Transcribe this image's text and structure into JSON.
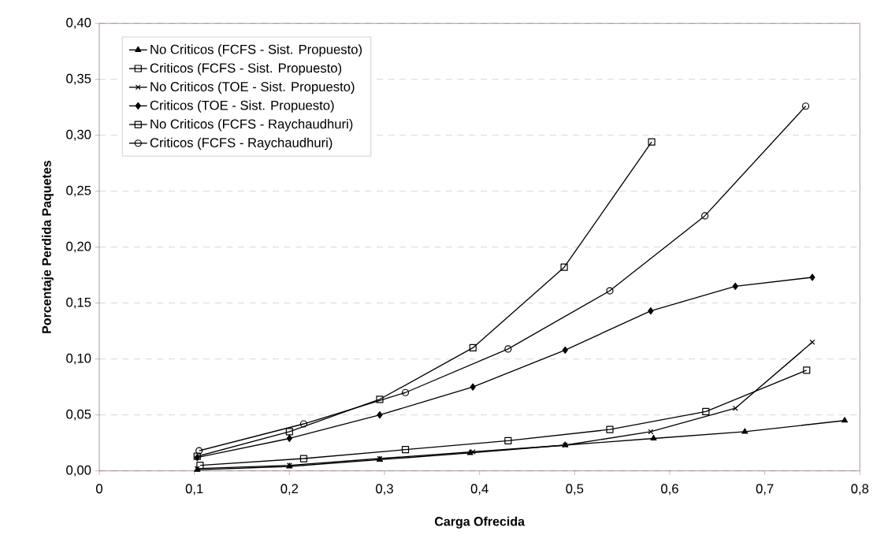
{
  "chart_data": {
    "type": "line",
    "xlabel": "Carga Ofrecida",
    "ylabel": "Porcentaje Perdida Paquetes",
    "xlim": [
      0,
      0.8
    ],
    "ylim": [
      0,
      0.4
    ],
    "xticks": [
      0,
      {
        "value": 0.1,
        "label": "0,1"
      },
      {
        "value": 0.2,
        "label": "0,2"
      },
      {
        "value": 0.3,
        "label": "0,3"
      },
      {
        "value": 0.4,
        "label": "0,4"
      },
      {
        "value": 0.5,
        "label": "0,5"
      },
      {
        "value": 0.6,
        "label": "0,6"
      },
      {
        "value": 0.7,
        "label": "0,7"
      },
      {
        "value": 0.8,
        "label": "0,8"
      }
    ],
    "yticks": [
      {
        "value": 0,
        "label": "0,00"
      },
      {
        "value": 0.05,
        "label": "0,05"
      },
      {
        "value": 0.1,
        "label": "0,10"
      },
      {
        "value": 0.15,
        "label": "0,15"
      },
      {
        "value": 0.2,
        "label": "0,20"
      },
      {
        "value": 0.25,
        "label": "0,25"
      },
      {
        "value": 0.3,
        "label": "0,30"
      },
      {
        "value": 0.35,
        "label": "0,35"
      },
      {
        "value": 0.4,
        "label": "0,40"
      }
    ],
    "grid": "y",
    "legend": "top left",
    "line_style": "solid",
    "series": [
      {
        "name": "No Criticos (FCFS - Sist. Propuesto)",
        "color": "#000000",
        "marker": "triangle",
        "x": [
          0.103,
          0.2,
          0.295,
          0.39,
          0.49,
          0.583,
          0.679,
          0.784
        ],
        "values": [
          0.001,
          0.004,
          0.01,
          0.016,
          0.023,
          0.029,
          0.035,
          0.045
        ]
      },
      {
        "name": "Criticos (FCFS - Sist. Propuesto)",
        "color": "#000000",
        "marker": "square",
        "x": [
          0.103,
          0.2,
          0.295,
          0.393,
          0.489,
          0.581
        ],
        "values": [
          0.013,
          0.035,
          0.064,
          0.11,
          0.182,
          0.294
        ]
      },
      {
        "name": "No Criticos (TOE - Sist. Propuesto)",
        "color": "#000000",
        "marker": "cross",
        "x": [
          0.103,
          0.2,
          0.295,
          0.393,
          0.49,
          0.58,
          0.669,
          0.75
        ],
        "values": [
          0.002,
          0.005,
          0.011,
          0.017,
          0.023,
          0.035,
          0.056,
          0.115
        ]
      },
      {
        "name": "Criticos (TOE - Sist. Propuesto)",
        "color": "#000000",
        "marker": "diamond",
        "x": [
          0.103,
          0.2,
          0.295,
          0.393,
          0.49,
          0.58,
          0.669,
          0.75
        ],
        "values": [
          0.012,
          0.029,
          0.05,
          0.075,
          0.108,
          0.143,
          0.165,
          0.173
        ]
      },
      {
        "name": "No Criticos (FCFS - Raychaudhuri)",
        "color": "#000000",
        "marker": "square",
        "x": [
          0.106,
          0.215,
          0.322,
          0.43,
          0.537,
          0.638,
          0.744
        ],
        "values": [
          0.005,
          0.011,
          0.019,
          0.027,
          0.037,
          0.053,
          0.09
        ]
      },
      {
        "name": "Criticos (FCFS - Raychaudhuri)",
        "color": "#000000",
        "marker": "circle",
        "x": [
          0.105,
          0.215,
          0.322,
          0.43,
          0.537,
          0.637,
          0.743
        ],
        "values": [
          0.018,
          0.042,
          0.07,
          0.109,
          0.161,
          0.228,
          0.326
        ]
      }
    ]
  }
}
